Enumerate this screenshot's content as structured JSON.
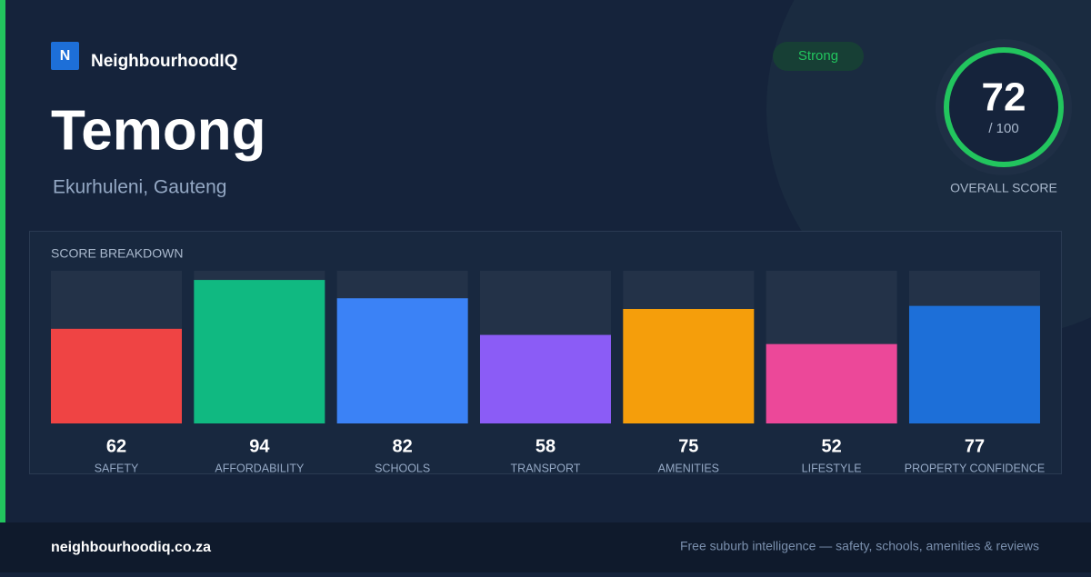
{
  "brand": {
    "logo": "N",
    "name": "NeighbourhoodIQ"
  },
  "suburb": {
    "name": "Temong",
    "location": "Ekurhuleni, Gauteng"
  },
  "badge": "Strong",
  "score": {
    "value": 72,
    "max_label": "/ 100",
    "caption": "OVERALL SCORE"
  },
  "chart_data": {
    "type": "bar",
    "title": "SCORE BREAKDOWN",
    "categories": [
      "SAFETY",
      "AFFORDABILITY",
      "SCHOOLS",
      "TRANSPORT",
      "AMENITIES",
      "LIFESTYLE",
      "PROPERTY CONFIDENCE"
    ],
    "values": [
      62,
      94,
      82,
      58,
      75,
      52,
      77
    ],
    "colors": [
      "#ef4444",
      "#10b981",
      "#3b82f6",
      "#8b5cf6",
      "#f59e0b",
      "#ec4899",
      "#1d6fd8"
    ],
    "ylim": [
      0,
      100
    ]
  },
  "footer": {
    "url": "neighbourhoodiq.co.za",
    "tagline": "Free suburb intelligence — safety, schools, amenities & reviews"
  }
}
